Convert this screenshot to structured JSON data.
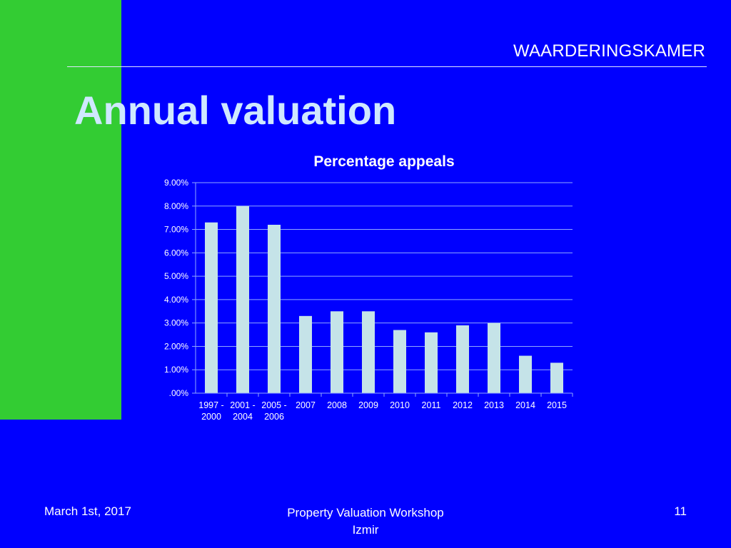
{
  "header": {
    "org_name": "WAARDERINGSKAMER"
  },
  "slide": {
    "title": "Annual valuation"
  },
  "chart_data": {
    "type": "bar",
    "title": "Percentage appeals",
    "categories": [
      [
        "1997 -",
        "2000"
      ],
      [
        "2001 -",
        "2004"
      ],
      [
        "2005 -",
        "2006"
      ],
      [
        "2007"
      ],
      [
        "2008"
      ],
      [
        "2009"
      ],
      [
        "2010"
      ],
      [
        "2011"
      ],
      [
        "2012"
      ],
      [
        "2013"
      ],
      [
        "2014"
      ],
      [
        "2015"
      ]
    ],
    "values": [
      7.3,
      8.0,
      7.2,
      3.3,
      3.5,
      3.5,
      2.7,
      2.6,
      2.9,
      3.0,
      1.6,
      1.3
    ],
    "ylim": [
      0,
      9
    ],
    "yticks": [
      0,
      1,
      2,
      3,
      4,
      5,
      6,
      7,
      8,
      9
    ],
    "ytick_labels": [
      ".00%",
      "1.00%",
      "2.00%",
      "3.00%",
      "4.00%",
      "5.00%",
      "6.00%",
      "7.00%",
      "8.00%",
      "9.00%"
    ],
    "grid": true,
    "bar_color": "#c5e3e8",
    "grid_color": "#8fa8ff",
    "text_color": "#ffffff"
  },
  "footer": {
    "date": "March 1st, 2017",
    "event_line1": "Property Valuation Workshop",
    "event_line2": "Izmir",
    "page_number": "11"
  },
  "colors": {
    "background": "#0000ff",
    "accent_green": "#33cc33",
    "title": "#cfe8ff"
  }
}
